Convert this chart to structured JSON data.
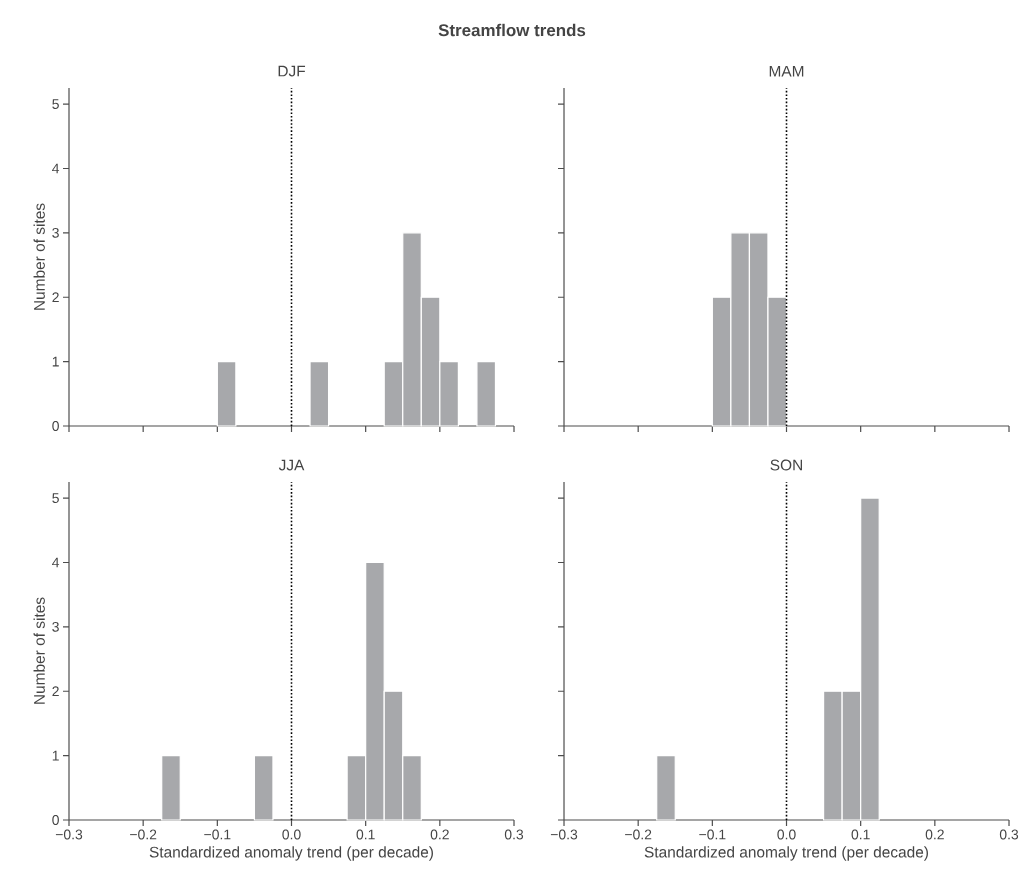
{
  "chart_data": [
    {
      "type": "histogram",
      "title": "Streamflow trends",
      "subtitle": "DJF",
      "ylabel": "Number of sites",
      "color": "#a7a8ab",
      "bins": [
        -0.1,
        -0.075,
        -0.05,
        -0.025,
        0,
        0.025,
        0.05,
        0.075,
        0.1,
        0.125,
        0.15,
        0.175,
        0.2,
        0.225,
        0.25,
        0.275
      ],
      "values": [
        1,
        0,
        0,
        0,
        0,
        1,
        0,
        0,
        0,
        1,
        3,
        2,
        1,
        0,
        1
      ],
      "xlim": [
        -0.3,
        0.3
      ],
      "xticks": [
        -0.3,
        -0.2,
        -0.1,
        0,
        0.1,
        0.2,
        0.3
      ],
      "ylim": [
        0,
        5.25
      ],
      "yticks": [
        0,
        1,
        2,
        3,
        4,
        5
      ],
      "ref_lines": [
        {
          "axis": "x",
          "value": 0,
          "color": "#000000",
          "line_style": "dotted"
        }
      ],
      "tick_labels": "y"
    },
    {
      "type": "histogram",
      "subtitle": "MAM",
      "color": "#a7a8ab",
      "bins": [
        -0.1,
        -0.075,
        -0.05,
        -0.025,
        0
      ],
      "values": [
        2,
        3,
        3,
        2
      ],
      "xlim": [
        -0.3,
        0.3
      ],
      "xticks": [
        -0.3,
        -0.2,
        -0.1,
        0,
        0.1,
        0.2,
        0.3
      ],
      "ylim": [
        0,
        5.25
      ],
      "yticks": [
        0,
        1,
        2,
        3,
        4,
        5
      ],
      "ref_lines": [
        {
          "axis": "x",
          "value": 0,
          "color": "#000000",
          "line_style": "dotted"
        }
      ],
      "tick_labels": false
    },
    {
      "type": "histogram",
      "subtitle": "JJA",
      "xlabel": "Standardized anomaly trend (per decade)",
      "ylabel": "Number of sites",
      "color": "#a7a8ab",
      "bins": [
        -0.175,
        -0.15,
        -0.125,
        -0.1,
        -0.075,
        -0.05,
        -0.025,
        0,
        0.025,
        0.05,
        0.075,
        0.1,
        0.125,
        0.15,
        0.175
      ],
      "values": [
        1,
        0,
        0,
        0,
        0,
        1,
        0,
        0,
        0,
        0,
        1,
        4,
        2,
        1
      ],
      "xlim": [
        -0.3,
        0.3
      ],
      "xticks": [
        {
          "value": -0.3,
          "label": "−0.3"
        },
        {
          "value": -0.2,
          "label": "−0.2"
        },
        {
          "value": -0.1,
          "label": "−0.1"
        },
        {
          "value": 0,
          "label": "0.0"
        },
        0.1,
        0.2,
        0.3
      ],
      "ylim": [
        0,
        5.25
      ],
      "yticks": [
        0,
        1,
        2,
        3,
        4,
        5
      ],
      "ref_lines": [
        {
          "axis": "x",
          "value": 0,
          "color": "#000000",
          "line_style": "dotted"
        }
      ]
    },
    {
      "type": "histogram",
      "subtitle": "SON",
      "xlabel": "Standardized anomaly trend (per decade)",
      "color": "#a7a8ab",
      "bins": [
        -0.175,
        -0.15,
        -0.125,
        -0.1,
        -0.075,
        -0.05,
        -0.025,
        0,
        0.025,
        0.05,
        0.075,
        0.1,
        0.125
      ],
      "values": [
        1,
        0,
        0,
        0,
        0,
        0,
        0,
        0,
        0,
        2,
        2,
        5
      ],
      "xlim": [
        -0.3,
        0.3
      ],
      "xticks": [
        {
          "value": -0.3,
          "label": "−0.3"
        },
        {
          "value": -0.2,
          "label": "−0.2"
        },
        {
          "value": -0.1,
          "label": "−0.1"
        },
        {
          "value": 0,
          "label": "0.0"
        },
        0.1,
        0.2,
        0.3
      ],
      "ylim": [
        0,
        5.25
      ],
      "yticks": [
        0,
        1,
        2,
        3,
        4,
        5
      ],
      "ref_lines": [
        {
          "axis": "x",
          "value": 0,
          "color": "#000000",
          "line_style": "dotted"
        }
      ],
      "tick_labels": "x"
    }
  ]
}
